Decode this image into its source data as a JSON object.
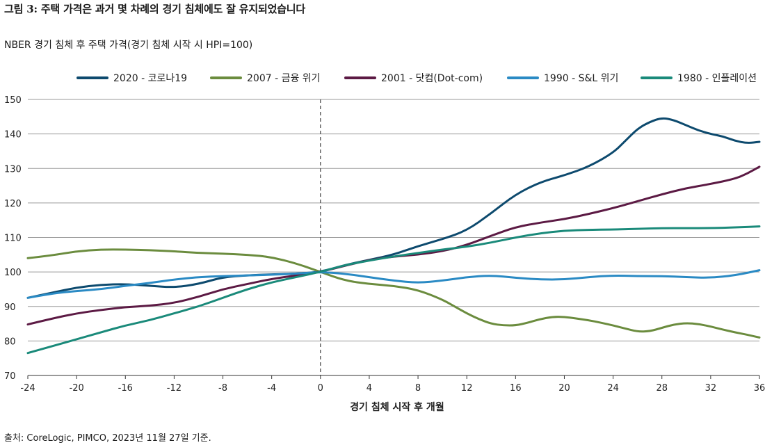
{
  "figure_title": "그림 3: 주택 가격은 과거 몇 차례의 경기 침체에도 잘 유지되었습니다",
  "source_note": "출처: CoreLogic, PIMCO, 2023년 11월 27일 기준.",
  "chart_data": {
    "type": "line",
    "title": "NBER 경기 침체 후 주택 가격(경기 침체 시작 시 HPI=100)",
    "xlabel": "경기 침체 시작 후 개월",
    "ylabel": "",
    "xlim": [
      -24,
      36
    ],
    "ylim": [
      70,
      150
    ],
    "x_ticks": [
      -24,
      -20,
      -16,
      -12,
      -8,
      -4,
      0,
      4,
      8,
      12,
      16,
      20,
      24,
      28,
      32,
      36
    ],
    "y_ticks": [
      70,
      80,
      90,
      100,
      110,
      120,
      130,
      140,
      150
    ],
    "grid": "horizontal",
    "reference_line_x": 0,
    "legend_position": "top",
    "series": [
      {
        "name": "2020 - 코로나19",
        "color": "#0d4a6e",
        "x": [
          -24,
          -22,
          -20,
          -18,
          -16,
          -14,
          -12,
          -10,
          -8,
          -6,
          -4,
          -2,
          0,
          2,
          4,
          6,
          8,
          10,
          12,
          14,
          16,
          18,
          20,
          22,
          24,
          25,
          26,
          27,
          28,
          29,
          30,
          31,
          32,
          33,
          34,
          35,
          36
        ],
        "values": [
          92.5,
          94,
          95.5,
          96.3,
          96.5,
          96,
          95.5,
          96.5,
          98.5,
          99,
          99.3,
          99.5,
          100,
          102,
          103.5,
          105,
          107.5,
          109.5,
          112,
          117,
          122.5,
          126,
          128,
          130.5,
          134.5,
          138,
          141.5,
          143.5,
          144.7,
          144,
          142.5,
          141,
          140,
          139.3,
          138,
          137.3,
          137.7
        ]
      },
      {
        "name": "2007 - 금융 위기",
        "color": "#6b8c3e",
        "x": [
          -24,
          -22,
          -20,
          -18,
          -16,
          -14,
          -12,
          -10,
          -8,
          -6,
          -4,
          -2,
          0,
          2,
          4,
          6,
          8,
          10,
          11,
          12,
          13,
          14,
          15,
          16,
          17,
          18,
          19,
          20,
          21,
          22,
          23,
          24,
          25,
          26,
          27,
          28,
          29,
          30,
          31,
          32,
          33,
          34,
          35,
          36
        ],
        "values": [
          104,
          104.8,
          106,
          106.5,
          106.5,
          106.3,
          106,
          105.5,
          105.3,
          105,
          104.3,
          102.5,
          100,
          97.5,
          96.5,
          96,
          94.8,
          92,
          90,
          88,
          86.3,
          85,
          84.5,
          84.5,
          85.3,
          86.3,
          87,
          87,
          86.5,
          86,
          85.3,
          84.5,
          83.6,
          82.7,
          82.8,
          83.8,
          84.8,
          85.2,
          84.9,
          84.2,
          83.3,
          82.5,
          81.8,
          81
        ]
      },
      {
        "name": "2001 - 닷컴(Dot-com)",
        "color": "#5c1a44",
        "x": [
          -24,
          -22,
          -20,
          -18,
          -16,
          -14,
          -12,
          -10,
          -8,
          -6,
          -4,
          -2,
          0,
          2,
          4,
          6,
          8,
          10,
          12,
          14,
          16,
          18,
          20,
          22,
          24,
          26,
          28,
          30,
          32,
          34,
          35,
          36
        ],
        "values": [
          84.8,
          86.5,
          88,
          89,
          89.8,
          90.2,
          91,
          92.8,
          95,
          96.5,
          98,
          99,
          100,
          101.8,
          103.5,
          104.5,
          105,
          106,
          107.8,
          110.5,
          113,
          114.3,
          115.3,
          116.8,
          118.5,
          120.5,
          122.5,
          124.3,
          125.5,
          127,
          128.5,
          130.5
        ]
      },
      {
        "name": "1990 - S&L 위기",
        "color": "#2a8ac4",
        "x": [
          -24,
          -22,
          -20,
          -18,
          -16,
          -14,
          -12,
          -10,
          -8,
          -6,
          -4,
          -2,
          0,
          2,
          4,
          6,
          8,
          10,
          12,
          14,
          16,
          18,
          20,
          22,
          24,
          26,
          28,
          30,
          32,
          34,
          36
        ],
        "values": [
          92.5,
          93.8,
          94.5,
          95,
          96,
          96.8,
          97.8,
          98.5,
          98.8,
          99,
          99.2,
          99.5,
          100,
          99.5,
          98.5,
          97.5,
          96.8,
          97.5,
          98.5,
          99,
          98.3,
          97.8,
          97.8,
          98.5,
          99,
          98.8,
          98.8,
          98.5,
          98.3,
          99,
          100.5
        ]
      },
      {
        "name": "1980 - 인플레이션",
        "color": "#1a8a7a",
        "x": [
          -24,
          -22,
          -20,
          -18,
          -16,
          -14,
          -12,
          -10,
          -8,
          -6,
          -4,
          -2,
          0,
          2,
          4,
          6,
          8,
          10,
          12,
          14,
          16,
          18,
          20,
          22,
          24,
          26,
          28,
          30,
          32,
          34,
          36
        ],
        "values": [
          76.5,
          78.5,
          80.5,
          82.5,
          84.5,
          86,
          88,
          90,
          92.5,
          95,
          97,
          98.5,
          100,
          102,
          103.3,
          104.5,
          105.5,
          106.5,
          107.3,
          108.5,
          110,
          111.2,
          112,
          112.2,
          112.3,
          112.5,
          112.7,
          112.7,
          112.7,
          112.9,
          113.2
        ]
      }
    ]
  }
}
